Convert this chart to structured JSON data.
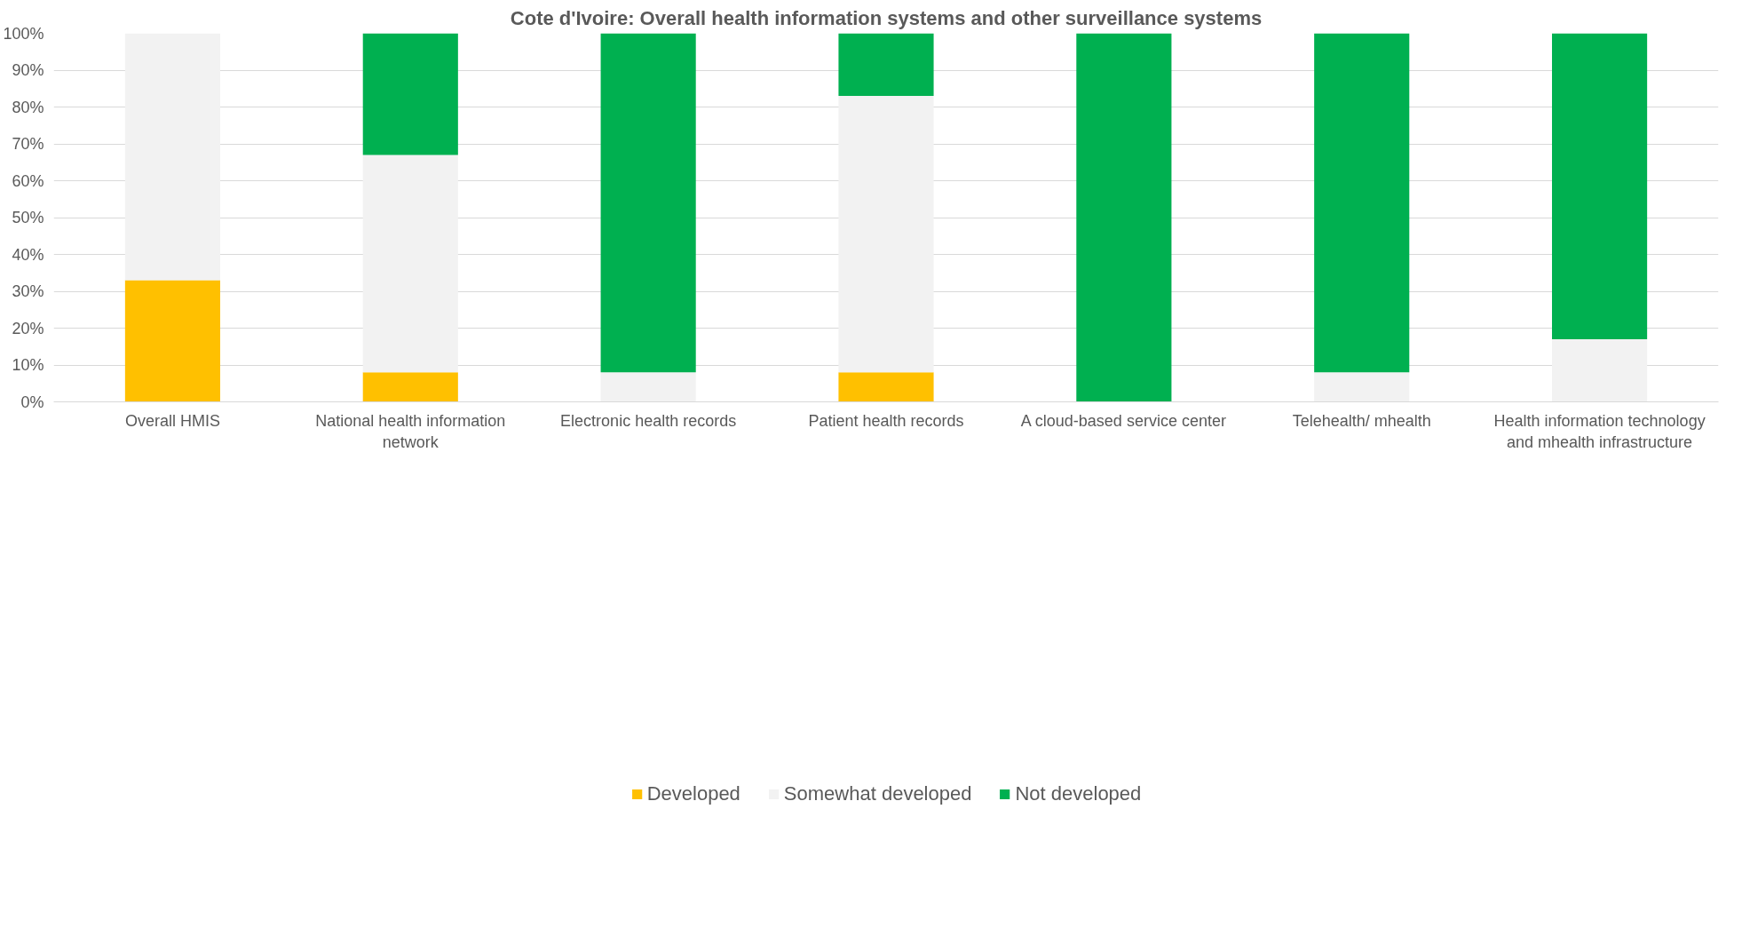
{
  "chart_data": {
    "type": "bar",
    "stacked": true,
    "title": "Cote d'Ivoire: Overall health information systems and other surveillance systems",
    "categories": [
      "Overall HMIS",
      "National health information network",
      "Electronic health records",
      "Patient health records",
      "A cloud-based service center",
      "Telehealth/ mhealth",
      "Health information technology and mhealth infrastructure"
    ],
    "series": [
      {
        "name": "Developed",
        "color": "#ffc000",
        "values": [
          33,
          8,
          0,
          8,
          0,
          0,
          0
        ]
      },
      {
        "name": "Somewhat developed",
        "color": "#f2f2f2",
        "values": [
          67,
          59,
          8,
          75,
          0,
          8,
          17
        ]
      },
      {
        "name": "Not developed",
        "color": "#00b050",
        "values": [
          0,
          33,
          92,
          17,
          100,
          92,
          83
        ]
      }
    ],
    "ylim": [
      0,
      100
    ],
    "yticks": [
      {
        "value": 0,
        "label": "0%"
      },
      {
        "value": 10,
        "label": "10%"
      },
      {
        "value": 20,
        "label": "20%"
      },
      {
        "value": 30,
        "label": "30%"
      },
      {
        "value": 40,
        "label": "40%"
      },
      {
        "value": 50,
        "label": "50%"
      },
      {
        "value": 60,
        "label": "60%"
      },
      {
        "value": 70,
        "label": "70%"
      },
      {
        "value": 80,
        "label": "80%"
      },
      {
        "value": 90,
        "label": "90%"
      },
      {
        "value": 100,
        "label": "100%"
      }
    ],
    "grid": "y",
    "legend": "bottom"
  }
}
